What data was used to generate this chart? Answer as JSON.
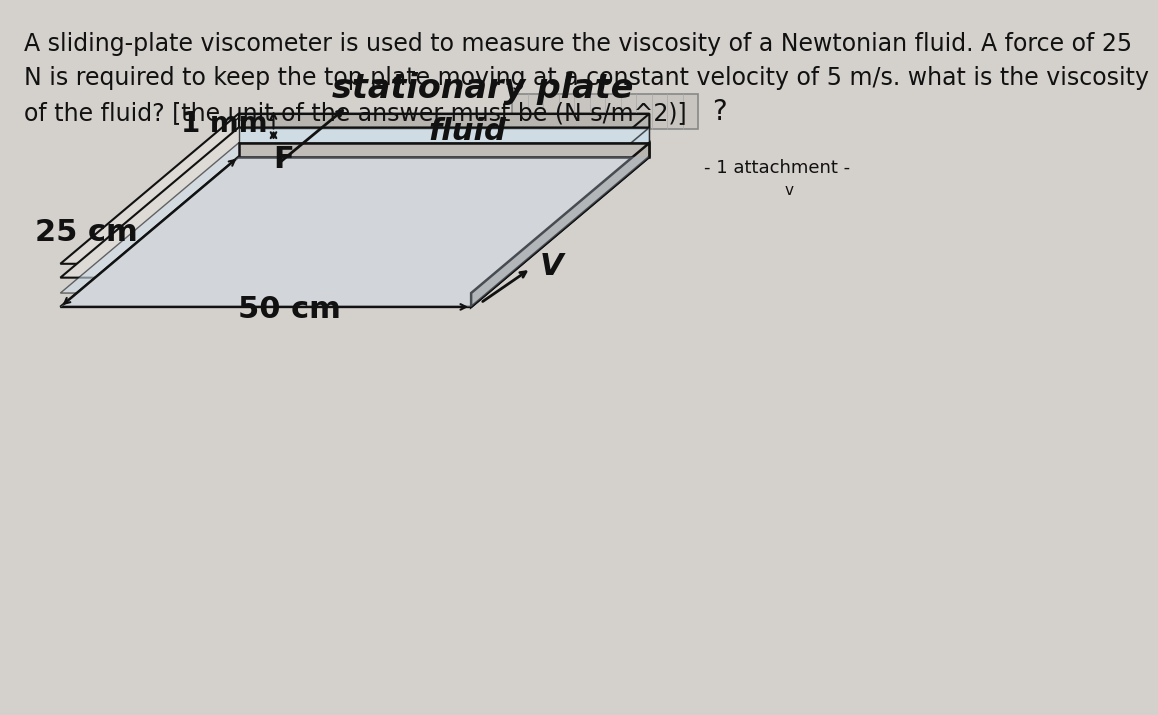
{
  "bg_color": "#d4d0cc",
  "text_color": "#111111",
  "question_lines": [
    "A sliding-plate viscometer is used to measure the viscosity of a Newtonian fluid. A force of 25",
    "N is required to keep the top plate moving at a constant velocity of 5 m/s. what is the viscosity",
    "of the fluid? [the unit of the answer must be (N-s/m^2)]"
  ],
  "attachment_text": "- 1 attachment -",
  "label_50cm": "50 cm",
  "label_25cm": "25 cm",
  "label_F": "F",
  "label_1mm": "1 mm",
  "label_fluid": "fluid",
  "label_V": "V",
  "label_stationary": "stationary plate",
  "question_mark": "?",
  "font_size_question": 17,
  "font_size_labels": 18,
  "font_size_stationary": 22,
  "plate_face_color": "#e8e4e0",
  "plate_side_color": "#c0bcb8",
  "plate_right_color": "#b8b4b0",
  "fluid_color": "#ccdde8",
  "stationary_face_color": "#dedad6",
  "stationary_side_color": "#b8b4b0",
  "answer_box_color": "#c8c4c0",
  "answer_box_edge": "#888888",
  "grid_line_color": "#aaaaaa"
}
